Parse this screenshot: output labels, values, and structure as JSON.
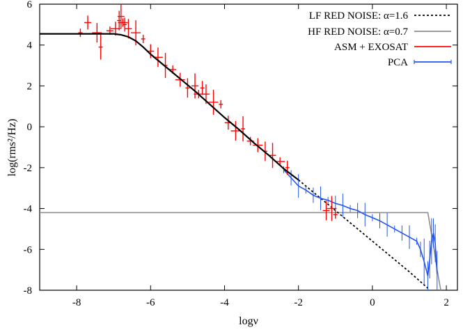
{
  "chart_data": {
    "type": "line",
    "xlabel": "logν",
    "ylabel": "log(rms²/Hz)",
    "xlim": [
      -9.0,
      2.3
    ],
    "ylim": [
      -8,
      6
    ],
    "x_ticks": [
      -8,
      -6,
      -4,
      -2,
      0,
      2
    ],
    "y_ticks": [
      -8,
      -6,
      -4,
      -2,
      0,
      2,
      4,
      6
    ],
    "x_tick_labels": [
      "-8",
      "-6",
      "-4",
      "-2",
      "0",
      "2"
    ],
    "y_tick_labels": [
      "-8",
      "-6",
      "-4",
      "-2",
      "0",
      "2",
      "4",
      "6"
    ],
    "grid": false,
    "legend_position": "top-right",
    "legend": [
      {
        "label": "LF RED NOISE: α=1.6",
        "style": "dotted",
        "color": "#000000"
      },
      {
        "label": "HF RED NOISE: α=0.7",
        "style": "solid",
        "color": "#8c8c8c"
      },
      {
        "label": "ASM + EXOSAT",
        "style": "solid",
        "color": "#ff0000"
      },
      {
        "label": "PCA",
        "style": "solid",
        "color": "#2255ee"
      }
    ],
    "series": [
      {
        "name": "model-total",
        "color": "#000000",
        "x": [
          -9.0,
          -7.6,
          -7.0,
          -6.8,
          -6.6,
          -6.4,
          -6.2,
          -6.0,
          -5.6,
          -5.2,
          -4.8,
          -4.4,
          -4.0,
          -3.6,
          -3.2,
          -2.8,
          -2.4,
          -2.0
        ],
        "y": [
          4.55,
          4.55,
          4.55,
          4.5,
          4.4,
          4.2,
          3.9,
          3.55,
          2.95,
          2.35,
          1.75,
          1.1,
          0.45,
          -0.15,
          -0.8,
          -1.4,
          -2.05,
          -2.6
        ]
      },
      {
        "name": "LF RED NOISE: α=1.6",
        "color": "#000000",
        "style": "dotted",
        "x": [
          -2.0,
          -1.0,
          0.0,
          1.0,
          1.5
        ],
        "y": [
          -2.6,
          -4.1,
          -5.6,
          -7.1,
          -7.9
        ]
      },
      {
        "name": "HF RED NOISE: α=0.7",
        "color": "#8c8c8c",
        "x": [
          -9.0,
          -2.0,
          -1.5,
          -1.0,
          -0.5,
          0.0,
          0.5,
          1.0,
          1.5,
          1.65,
          1.75,
          1.85
        ],
        "y": [
          -4.2,
          -4.2,
          -4.2,
          -4.2,
          -4.2,
          -4.2,
          -4.2,
          -4.2,
          -4.2,
          -5.8,
          -7.0,
          -8.0
        ]
      },
      {
        "name": "ASM + EXOSAT",
        "color": "#ff0000",
        "x": [
          -7.9,
          -7.7,
          -7.45,
          -7.35,
          -7.1,
          -6.95,
          -6.85,
          -6.8,
          -6.75,
          -6.7,
          -6.6,
          -6.4,
          -6.2,
          -6.0,
          -5.8,
          -5.6,
          -5.4,
          -5.2,
          -5.0,
          -4.8,
          -4.7,
          -4.6,
          -4.5,
          -4.3,
          -4.1,
          -3.9,
          -3.7,
          -3.5,
          -3.3,
          -3.1,
          -2.9,
          -2.7,
          -2.5,
          -2.3,
          -1.25,
          -1.1,
          -1.0
        ],
        "y": [
          4.6,
          5.1,
          4.6,
          3.9,
          4.7,
          4.8,
          5.2,
          5.4,
          5.1,
          5.0,
          4.8,
          4.6,
          4.3,
          3.7,
          3.4,
          3.0,
          2.8,
          2.3,
          1.9,
          2.0,
          1.6,
          1.9,
          1.6,
          1.2,
          1.1,
          0.2,
          -0.2,
          -0.1,
          -0.7,
          -0.9,
          -1.2,
          -1.4,
          -1.7,
          -2.0,
          -4.1,
          -4.0,
          -4.3
        ]
      },
      {
        "name": "PCA",
        "color": "#2255ee",
        "x": [
          -2.4,
          -2.2,
          -2.0,
          -1.8,
          -1.6,
          -1.4,
          -1.2,
          -1.0,
          -0.8,
          -0.6,
          -0.4,
          -0.2,
          0.0,
          0.2,
          0.4,
          0.6,
          0.8,
          1.0,
          1.2,
          1.3,
          1.4,
          1.5,
          1.55,
          1.6,
          1.65,
          1.7,
          1.75
        ],
        "y": [
          -2.1,
          -2.5,
          -2.9,
          -3.1,
          -3.35,
          -3.5,
          -3.6,
          -3.75,
          -3.85,
          -4.0,
          -4.1,
          -4.3,
          -4.45,
          -4.6,
          -4.8,
          -5.0,
          -5.2,
          -5.4,
          -5.6,
          -6.0,
          -6.6,
          -7.3,
          -6.5,
          -5.6,
          -5.2,
          -5.7,
          -7.2
        ]
      }
    ]
  }
}
